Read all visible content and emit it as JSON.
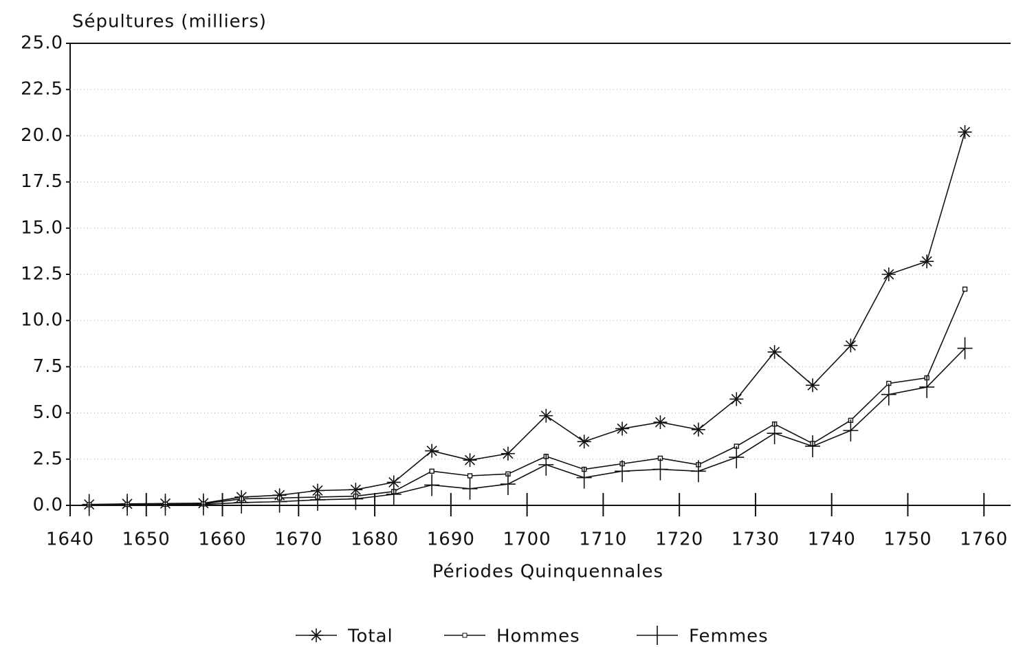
{
  "chart_data": {
    "type": "line",
    "title": "Sépultures (milliers)",
    "xlabel": "Périodes Quinquennales",
    "x": [
      1642.5,
      1647.5,
      1652.5,
      1657.5,
      1662.5,
      1667.5,
      1672.5,
      1677.5,
      1682.5,
      1687.5,
      1692.5,
      1697.5,
      1702.5,
      1707.5,
      1712.5,
      1717.5,
      1722.5,
      1727.5,
      1732.5,
      1737.5,
      1742.5,
      1747.5,
      1752.5,
      1757.5
    ],
    "series": [
      {
        "name": "Total",
        "color": "#111111",
        "marker": "star",
        "values": [
          0.05,
          0.08,
          0.1,
          0.12,
          0.45,
          0.55,
          0.8,
          0.85,
          1.25,
          2.95,
          2.45,
          2.8,
          4.85,
          3.45,
          4.15,
          4.5,
          4.1,
          5.75,
          8.3,
          6.5,
          8.65,
          12.5,
          13.2,
          20.2
        ]
      },
      {
        "name": "Hommes",
        "color": "#111111",
        "marker": "square",
        "values": [
          0.03,
          0.05,
          0.06,
          0.08,
          0.35,
          0.4,
          0.45,
          0.5,
          0.75,
          1.85,
          1.6,
          1.7,
          2.65,
          1.95,
          2.25,
          2.55,
          2.2,
          3.2,
          4.4,
          3.35,
          4.6,
          6.6,
          6.9,
          11.7
        ]
      },
      {
        "name": "Femmes",
        "color": "#111111",
        "marker": "plus",
        "values": [
          0.02,
          0.03,
          0.04,
          0.05,
          0.15,
          0.2,
          0.3,
          0.35,
          0.6,
          1.1,
          0.9,
          1.15,
          2.2,
          1.5,
          1.85,
          1.95,
          1.85,
          2.6,
          3.9,
          3.2,
          4.05,
          6.0,
          6.4,
          8.5
        ]
      }
    ],
    "xlim": [
      1640,
      1763.5
    ],
    "xticks": [
      1640,
      1650,
      1660,
      1670,
      1680,
      1690,
      1700,
      1710,
      1720,
      1730,
      1740,
      1750,
      1760
    ],
    "ylim": [
      0,
      25
    ],
    "yticks": [
      {
        "value": 0,
        "label": "0.0"
      },
      {
        "value": 2.5,
        "label": "2.5"
      },
      {
        "value": 5,
        "label": "5.0"
      },
      {
        "value": 7.5,
        "label": "7.5"
      },
      {
        "value": 10,
        "label": "10.0"
      },
      {
        "value": 12.5,
        "label": "12.5"
      },
      {
        "value": 15,
        "label": "15.0"
      },
      {
        "value": 17.5,
        "label": "17.5"
      },
      {
        "value": 20,
        "label": "20.0"
      },
      {
        "value": 22.5,
        "label": "22.5"
      },
      {
        "value": 25,
        "label": "25.0"
      }
    ],
    "grid": true,
    "legend": "bottom"
  }
}
